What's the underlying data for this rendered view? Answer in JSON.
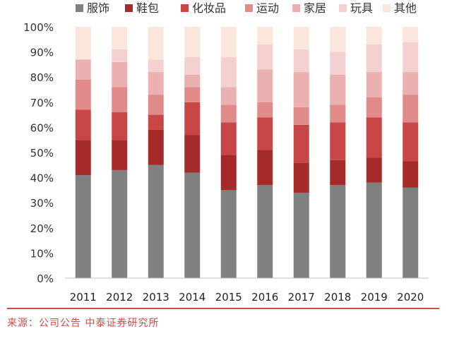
{
  "chart_data": {
    "type": "bar",
    "stacked": true,
    "percent": true,
    "categories": [
      "2011",
      "2012",
      "2013",
      "2014",
      "2015",
      "2016",
      "2017",
      "2018",
      "2019",
      "2020"
    ],
    "ylim": [
      0,
      100
    ],
    "yticks": [
      0,
      10,
      20,
      30,
      40,
      50,
      60,
      70,
      80,
      90,
      100
    ],
    "ytick_labels": [
      "0%",
      "10%",
      "20%",
      "30%",
      "40%",
      "50%",
      "60%",
      "70%",
      "80%",
      "90%",
      "100%"
    ],
    "legend_position": "top",
    "series": [
      {
        "name": "服饰",
        "color": "#808080",
        "values": [
          41,
          43,
          45,
          42,
          35,
          37,
          34,
          37,
          38,
          36
        ]
      },
      {
        "name": "鞋包",
        "color": "#a52a2a",
        "values": [
          14,
          12,
          14,
          15,
          14,
          14,
          12,
          10,
          10,
          10.5
        ]
      },
      {
        "name": "化妆品",
        "color": "#c94646",
        "values": [
          12,
          11,
          6,
          13,
          13,
          13,
          15,
          15,
          16,
          15.5
        ]
      },
      {
        "name": "运动",
        "color": "#e08a8a",
        "values": [
          12,
          10,
          8,
          6,
          7,
          6,
          7,
          7,
          8,
          11
        ]
      },
      {
        "name": "家居",
        "color": "#ebb0b0",
        "values": [
          8,
          10,
          9,
          5,
          7,
          13,
          14,
          12,
          10,
          9
        ]
      },
      {
        "name": "玩具",
        "color": "#f4d0d0",
        "values": [
          0,
          5,
          5,
          7,
          12,
          10,
          9,
          9,
          11,
          12
        ]
      },
      {
        "name": "其他",
        "color": "#fbe6db",
        "values": [
          13,
          9,
          13,
          12,
          12,
          7,
          9,
          10,
          7,
          6
        ]
      }
    ]
  },
  "source": "来源：公司公告 中泰证券研究所"
}
